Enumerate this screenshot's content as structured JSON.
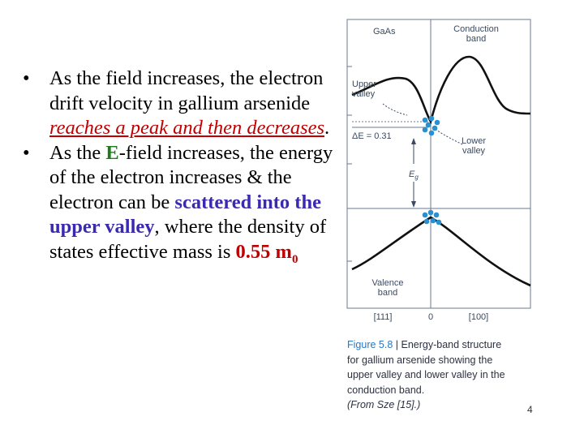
{
  "bullets": [
    {
      "marker": "•",
      "segments": [
        {
          "text": "As the field increases, the electron drift velocity in gallium arsenide ",
          "style": "plain"
        },
        {
          "text": "reaches a peak and then decreases",
          "style": "red-u"
        },
        {
          "text": ".",
          "style": "plain"
        }
      ]
    },
    {
      "marker": "•",
      "segments": [
        {
          "text": "As the ",
          "style": "plain"
        },
        {
          "text": "E",
          "style": "green-b"
        },
        {
          "text": "-field increases, the energy of the electron increases & the electron can be ",
          "style": "plain"
        },
        {
          "text": "scattered into the upper valley",
          "style": "blue-b"
        },
        {
          "text": ", where the density of states effective mass is ",
          "style": "plain"
        },
        {
          "text": "0.55 m",
          "style": "red-b"
        },
        {
          "text": "0",
          "style": "red-b-sub"
        }
      ]
    }
  ],
  "figure": {
    "material": "GaAs",
    "conduction_band": "Conduction\nband",
    "upper_valley": "Upper\nvalley",
    "delta_e": "ΔE = 0.31",
    "lower_valley": "Lower\nvalley",
    "eg_symbol": "E",
    "eg_sub": "g",
    "valence_band": "Valence\nband",
    "k_left": "[111]",
    "k_zero": "0",
    "k_right": "[100]",
    "colors": {
      "curve": "#111111",
      "frame": "#6b7a90",
      "carrier": "#2a90d0",
      "text": "#3b4a60"
    }
  },
  "caption": {
    "label": "Figure 5.8",
    "separator": " | ",
    "lines": [
      "Energy-band structure",
      "for gallium arsenide showing the",
      "upper valley and lower valley in the",
      "conduction band."
    ],
    "source": "(From Sze [15].)"
  },
  "page_number": "4"
}
